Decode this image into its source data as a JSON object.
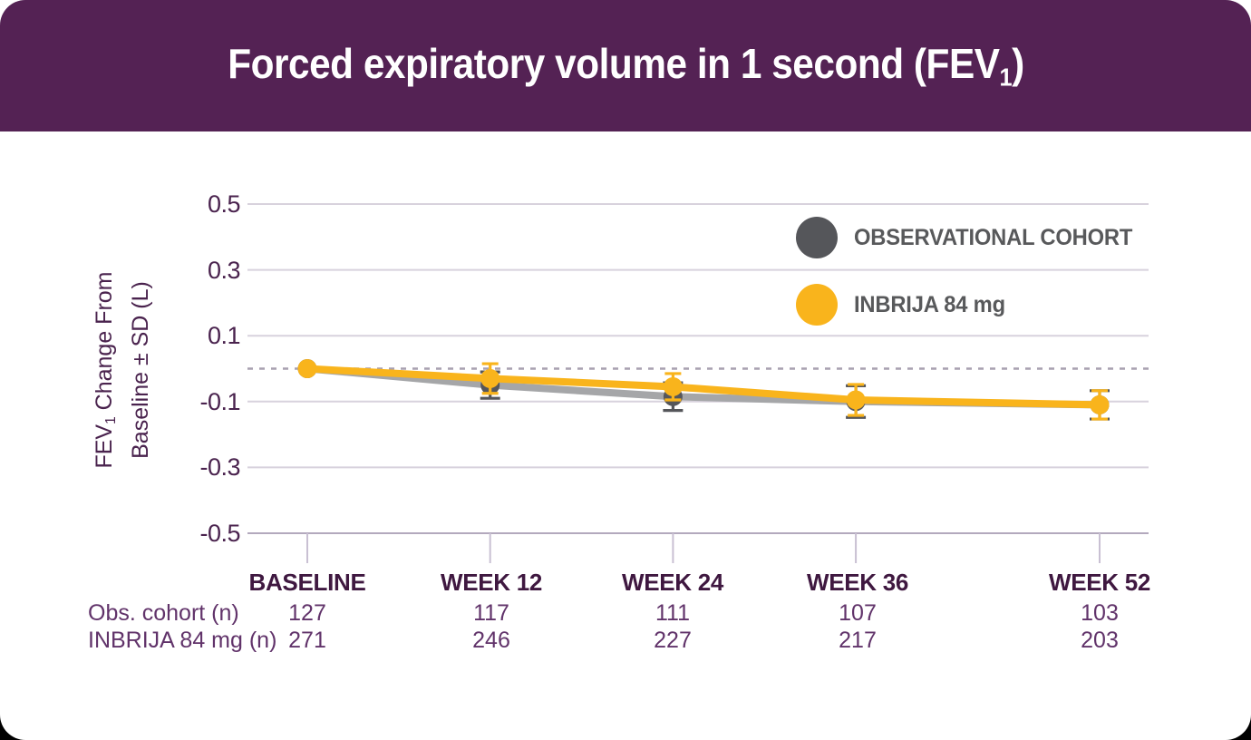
{
  "header": {
    "title_prefix": "Forced expiratory volume in 1 second (FEV",
    "title_sub": "1",
    "title_suffix": ")"
  },
  "legend": {
    "items": [
      {
        "label": "OBSERVATIONAL COHORT",
        "color": "#55565A"
      },
      {
        "label": "INBRIJA 84 mg",
        "color": "#F9B41C"
      }
    ]
  },
  "y_axis": {
    "label_line1_prefix": "FEV",
    "label_line1_sub": "1",
    "label_line1_suffix": " Change From",
    "label_line2": "Baseline ± SD (L)",
    "ticks": [
      "0.5",
      "0.3",
      "0.1",
      "-0.1",
      "-0.3",
      "-0.5"
    ]
  },
  "x_axis": {
    "categories": [
      "BASELINE",
      "WEEK 12",
      "WEEK 24",
      "WEEK 36",
      "WEEK 52"
    ]
  },
  "table": {
    "rows": [
      {
        "label": "Obs. cohort (n)",
        "values": [
          "127",
          "117",
          "111",
          "107",
          "103"
        ]
      },
      {
        "label": "INBRIJA 84 mg (n)",
        "values": [
          "271",
          "246",
          "227",
          "217",
          "203"
        ]
      }
    ]
  },
  "chart_data": {
    "type": "line",
    "title": "Forced expiratory volume in 1 second (FEV1)",
    "ylabel": "FEV1 Change From Baseline ± SD (L)",
    "categories": [
      "BASELINE",
      "WEEK 12",
      "WEEK 24",
      "WEEK 36",
      "WEEK 52"
    ],
    "x_weeks": [
      0,
      12,
      24,
      36,
      52
    ],
    "ylim": [
      -0.5,
      0.5
    ],
    "yticks": [
      0.5,
      0.3,
      0.1,
      -0.1,
      -0.3,
      -0.5
    ],
    "zero_reference_line": true,
    "grid": true,
    "legend_position": "upper right",
    "series": [
      {
        "name": "OBSERVATIONAL COHORT",
        "marker_color": "#55565A",
        "line_color": "#A5A6A8",
        "values": [
          0,
          -0.05,
          -0.085,
          -0.1,
          -0.11
        ],
        "sd": [
          0,
          0.04,
          0.042,
          0.048,
          0.043
        ],
        "n": [
          127,
          117,
          111,
          107,
          103
        ]
      },
      {
        "name": "INBRIJA 84 mg",
        "marker_color": "#F9B41C",
        "line_color": "#F9B41C",
        "values": [
          0,
          -0.03,
          -0.055,
          -0.095,
          -0.11
        ],
        "sd": [
          0,
          0.045,
          0.04,
          0.047,
          0.043
        ],
        "n": [
          271,
          246,
          227,
          217,
          203
        ]
      }
    ]
  },
  "colors": {
    "header_bg": "#542254",
    "title_text": "#FFFFFF",
    "grid_line": "#D8D2DD",
    "axis_line": "#B3A9BD",
    "tick_mark": "#C9C0D3",
    "zero_dotted": "#A8A0B0",
    "y_tick_text": "#4A234E",
    "category_text": "#3F1840",
    "table_text": "#61336A",
    "legend_text": "#58595B"
  }
}
